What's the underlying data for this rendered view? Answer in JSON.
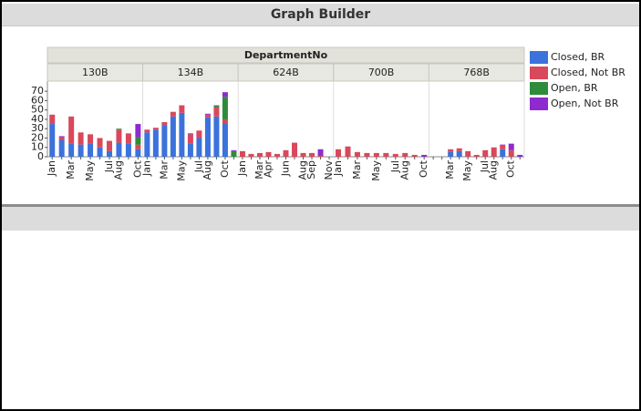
{
  "window_title": "Graph Builder",
  "chart_data": {
    "type": "bar",
    "stacked": true,
    "title": "DepartmentNo",
    "ylim": [
      0,
      75
    ],
    "yticks": [
      0,
      10,
      20,
      30,
      40,
      50,
      60,
      70
    ],
    "series": [
      {
        "name": "Closed, BR",
        "color": "#3b72dc"
      },
      {
        "name": "Closed, Not BR",
        "color": "#d9485b"
      },
      {
        "name": "Open, BR",
        "color": "#2e8b3a"
      },
      {
        "name": "Open, Not BR",
        "color": "#8e2ad0"
      }
    ],
    "panels": [
      {
        "name": "130B",
        "categories": [
          "Jan",
          null,
          "Mar",
          null,
          "May",
          null,
          "Jul",
          "Aug",
          null,
          "Oct"
        ],
        "series": [
          {
            "values": [
              35,
              18,
              14,
              13,
              14,
              10,
              6,
              15,
              14,
              8
            ]
          },
          {
            "values": [
              10,
              3,
              29,
              13,
              10,
              10,
              11,
              14,
              11,
              5
            ]
          },
          {
            "values": [
              null,
              null,
              null,
              null,
              null,
              null,
              null,
              1,
              null,
              8
            ]
          },
          {
            "values": [
              null,
              1,
              null,
              null,
              null,
              null,
              null,
              null,
              null,
              14
            ]
          }
        ]
      },
      {
        "name": "134B",
        "categories": [
          "Jan",
          null,
          "Mar",
          null,
          "May",
          null,
          "Jul",
          "Aug",
          null,
          "Oct",
          null
        ],
        "series": [
          {
            "values": [
              26,
              29,
              34,
              43,
              47,
              14,
              20,
              42,
              43,
              36,
              null
            ]
          },
          {
            "values": [
              3,
              2,
              3,
              5,
              8,
              10,
              8,
              3,
              10,
              4,
              null
            ]
          },
          {
            "values": [
              null,
              null,
              null,
              null,
              null,
              null,
              null,
              null,
              2,
              24,
              6
            ]
          },
          {
            "values": [
              null,
              null,
              null,
              null,
              null,
              1,
              null,
              1,
              null,
              5,
              1
            ]
          }
        ]
      },
      {
        "name": "624B",
        "categories": [
          "Jan",
          null,
          "Mar",
          "Apr",
          null,
          "Jun",
          null,
          "Aug",
          "Sep",
          null,
          "Nov"
        ],
        "series": [
          {
            "values": [
              null,
              null,
              null,
              null,
              null,
              null,
              null,
              null,
              null,
              null,
              null
            ]
          },
          {
            "values": [
              6,
              3,
              4,
              5,
              3,
              7,
              15,
              4,
              4,
              1,
              null
            ]
          },
          {
            "values": [
              null,
              null,
              null,
              null,
              null,
              null,
              null,
              null,
              null,
              null,
              null
            ]
          },
          {
            "values": [
              null,
              null,
              null,
              null,
              null,
              null,
              null,
              null,
              null,
              7,
              null
            ]
          }
        ]
      },
      {
        "name": "700B",
        "categories": [
          "Jan",
          null,
          "Mar",
          null,
          "May",
          null,
          "Jul",
          "Aug",
          null,
          "Oct"
        ],
        "series": [
          {
            "values": [
              null,
              null,
              null,
              null,
              null,
              null,
              null,
              null,
              null,
              null
            ]
          },
          {
            "values": [
              8,
              11,
              5,
              4,
              4,
              4,
              3,
              4,
              2,
              null
            ]
          },
          {
            "values": [
              null,
              null,
              null,
              null,
              null,
              null,
              null,
              null,
              null,
              null
            ]
          },
          {
            "values": [
              null,
              null,
              null,
              null,
              null,
              null,
              null,
              null,
              null,
              2
            ]
          }
        ]
      },
      {
        "name": "768B",
        "categories": [
          null,
          null,
          "Mar",
          null,
          "May",
          null,
          "Jul",
          "Aug",
          null,
          "Oct",
          null
        ],
        "series": [
          {
            "values": [
              null,
              null,
              5,
              6,
              null,
              null,
              null,
              null,
              8,
              null,
              null
            ]
          },
          {
            "values": [
              null,
              null,
              3,
              3,
              6,
              2,
              7,
              10,
              4,
              7,
              null
            ]
          },
          {
            "values": [
              null,
              null,
              null,
              null,
              null,
              null,
              null,
              null,
              null,
              null,
              null
            ]
          },
          {
            "values": [
              null,
              null,
              null,
              null,
              null,
              null,
              null,
              null,
              1,
              7,
              2
            ]
          }
        ]
      }
    ]
  }
}
